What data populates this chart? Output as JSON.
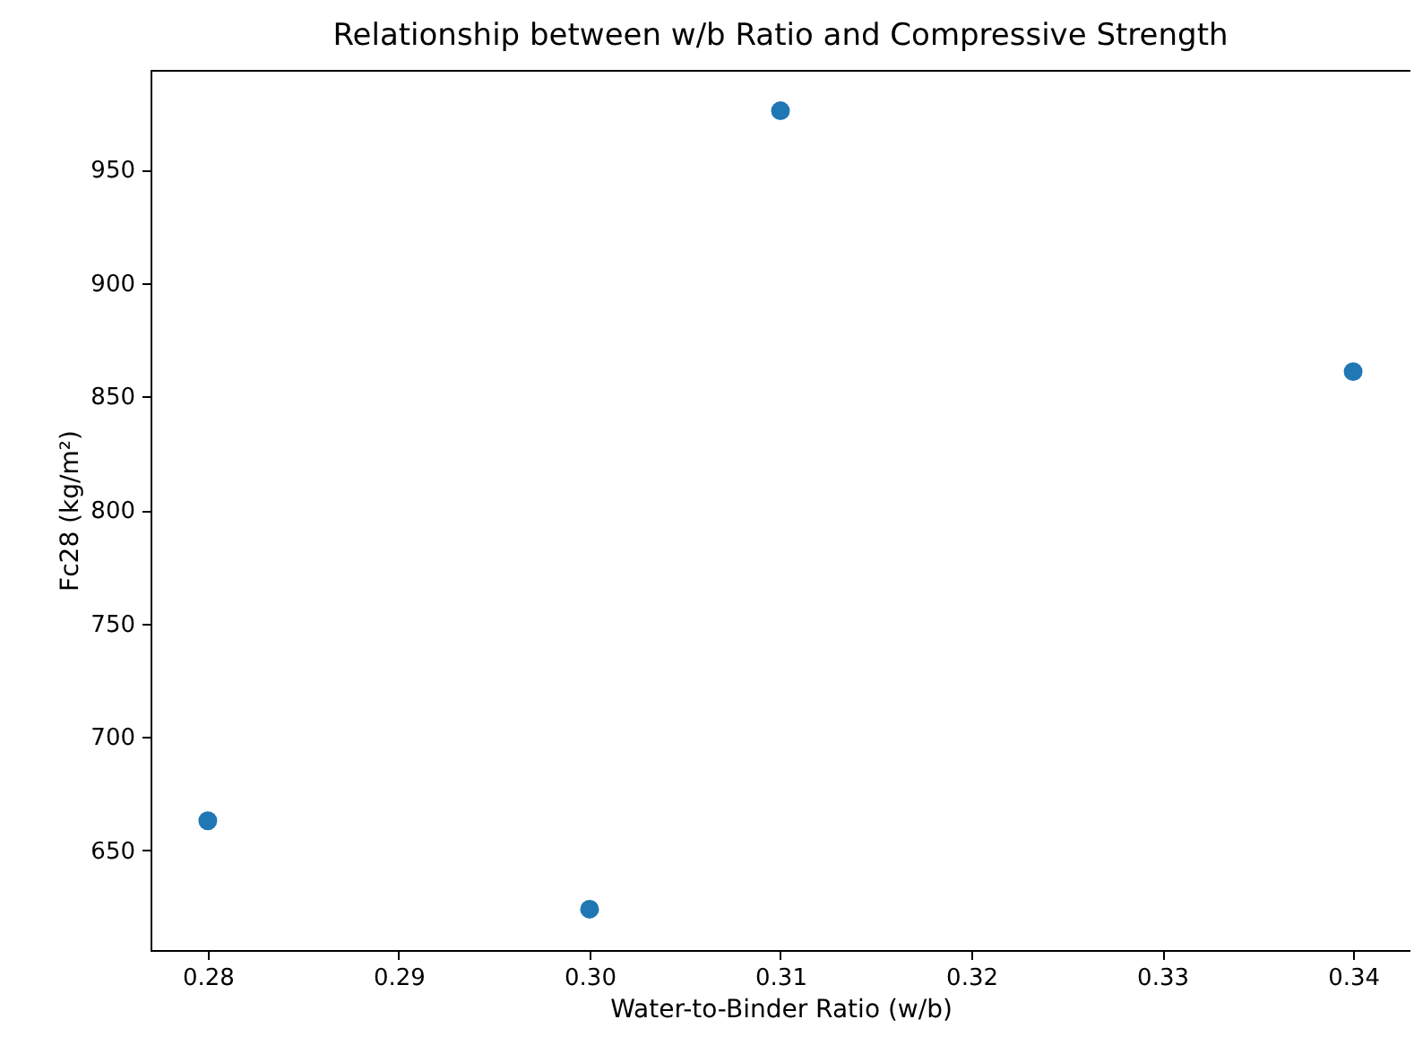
{
  "chart_data": {
    "type": "scatter",
    "title": "Relationship between w/b Ratio and Compressive Strength",
    "xlabel": "Water-to-Binder Ratio (w/b)",
    "ylabel": "Fc28 (kg/m²)",
    "x": [
      0.28,
      0.3,
      0.31,
      0.34
    ],
    "series": [
      {
        "color": "#1f77b4",
        "values": [
          663,
          624,
          976,
          861
        ]
      }
    ],
    "xlim": [
      0.277,
      0.343
    ],
    "xticks": [
      {
        "value": 0.28,
        "label": "0.28"
      },
      {
        "value": 0.29,
        "label": "0.29"
      },
      {
        "value": 0.3,
        "label": "0.30"
      },
      {
        "value": 0.31,
        "label": "0.31"
      },
      {
        "value": 0.32,
        "label": "0.32"
      },
      {
        "value": 0.33,
        "label": "0.33"
      },
      {
        "value": 0.34,
        "label": "0.34"
      }
    ],
    "ylim": [
      606,
      994
    ],
    "yticks": [
      650,
      700,
      750,
      800,
      850,
      900,
      950
    ],
    "grid": false,
    "marker": "circle"
  }
}
